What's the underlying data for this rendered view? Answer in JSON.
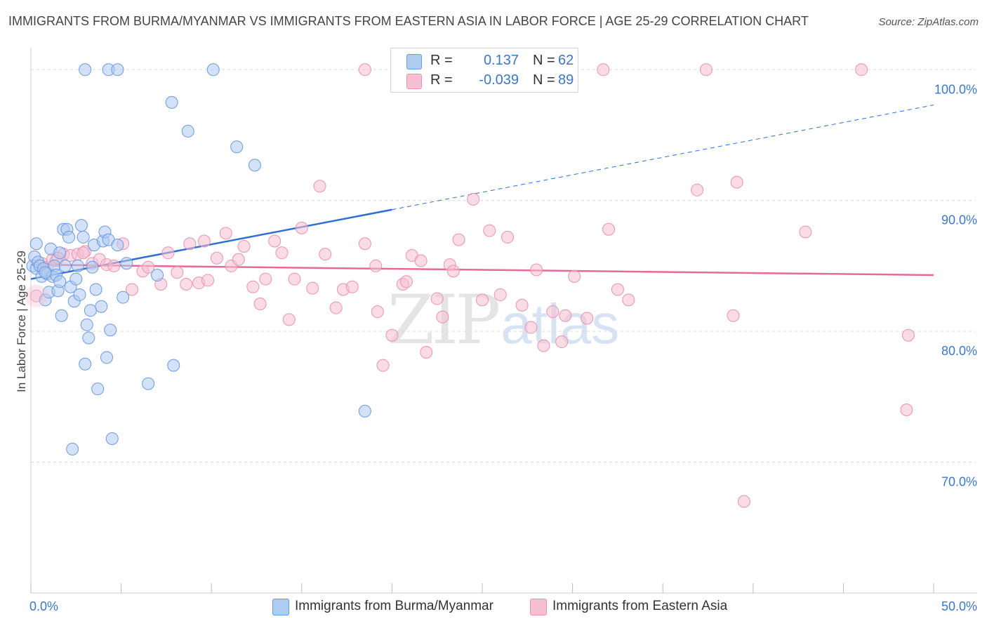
{
  "title": "IMMIGRANTS FROM BURMA/MYANMAR VS IMMIGRANTS FROM EASTERN ASIA IN LABOR FORCE | AGE 25-29 CORRELATION CHART",
  "source": "Source: ZipAtlas.com",
  "watermark": {
    "zip": "ZIP",
    "atlas": "atlas"
  },
  "legend": {
    "rows": [
      {
        "r_label": "R =",
        "r_value": "0.137",
        "n_label": "N =",
        "n_value": "62"
      },
      {
        "r_label": "R =",
        "r_value": "-0.039",
        "n_label": "N =",
        "n_value": "89"
      }
    ]
  },
  "colors": {
    "blue_fill": "#aecbf2",
    "blue_stroke": "#6b9ae0",
    "blue_line": "#2f6fd0",
    "pink_fill": "#f7bfd2",
    "pink_stroke": "#e893b0",
    "pink_line": "#e66a97",
    "tick_label": "#3b78c9",
    "grid": "#d9d9d9"
  },
  "chart_data": {
    "type": "scatter",
    "title": "IMMIGRANTS FROM BURMA/MYANMAR VS IMMIGRANTS FROM EASTERN ASIA IN LABOR FORCE | AGE 25-29 CORRELATION CHART",
    "xlabel": "",
    "ylabel": "In Labor Force | Age 25-29",
    "xlim": [
      0,
      50
    ],
    "ylim": [
      60,
      102
    ],
    "x_tick_labels": [
      "0.0%",
      "50.0%"
    ],
    "y_ticks": [
      70,
      80,
      90,
      100
    ],
    "y_tick_labels": [
      "70.0%",
      "80.0%",
      "90.0%",
      "100.0%"
    ],
    "grid": true,
    "legend_position": "bottom",
    "series": [
      {
        "name": "Immigrants from Burma/Myanmar",
        "r": 0.137,
        "n": 62,
        "trend": {
          "x0": 0,
          "y0": 84.0,
          "x_solid_end": 20,
          "y_solid_end": 89.3,
          "x1": 50,
          "y1": 97.3
        },
        "points": [
          [
            0.1,
            85.0
          ],
          [
            0.2,
            85.7
          ],
          [
            0.3,
            86.7
          ],
          [
            0.3,
            84.8
          ],
          [
            0.4,
            85.3
          ],
          [
            0.5,
            85.0
          ],
          [
            0.6,
            84.2
          ],
          [
            0.7,
            84.8
          ],
          [
            0.8,
            82.4
          ],
          [
            0.9,
            84.4
          ],
          [
            1.0,
            83.0
          ],
          [
            1.1,
            86.3
          ],
          [
            1.2,
            84.2
          ],
          [
            1.3,
            85.0
          ],
          [
            1.4,
            84.3
          ],
          [
            1.5,
            83.1
          ],
          [
            1.6,
            86.0
          ],
          [
            1.7,
            81.2
          ],
          [
            1.8,
            87.8
          ],
          [
            1.9,
            85.0
          ],
          [
            2.0,
            87.8
          ],
          [
            2.1,
            87.2
          ],
          [
            2.2,
            83.4
          ],
          [
            2.3,
            71.0
          ],
          [
            2.4,
            82.3
          ],
          [
            2.5,
            84.0
          ],
          [
            2.6,
            85.0
          ],
          [
            2.7,
            82.8
          ],
          [
            2.8,
            88.1
          ],
          [
            2.9,
            87.2
          ],
          [
            3.0,
            77.5
          ],
          [
            3.1,
            80.5
          ],
          [
            3.2,
            79.5
          ],
          [
            3.3,
            81.6
          ],
          [
            3.4,
            84.9
          ],
          [
            3.5,
            86.6
          ],
          [
            3.6,
            83.2
          ],
          [
            3.7,
            75.6
          ],
          [
            3.9,
            81.9
          ],
          [
            4.0,
            86.9
          ],
          [
            4.1,
            87.6
          ],
          [
            4.2,
            78.0
          ],
          [
            4.3,
            87.0
          ],
          [
            4.4,
            80.1
          ],
          [
            4.5,
            71.8
          ],
          [
            4.8,
            86.6
          ],
          [
            5.1,
            82.6
          ],
          [
            5.3,
            85.2
          ],
          [
            6.5,
            76.0
          ],
          [
            7.0,
            84.3
          ],
          [
            7.8,
            97.5
          ],
          [
            7.9,
            77.4
          ],
          [
            8.7,
            95.3
          ],
          [
            10.1,
            100.0
          ],
          [
            11.4,
            94.1
          ],
          [
            12.4,
            92.7
          ],
          [
            18.5,
            73.9
          ],
          [
            3.0,
            100.0
          ],
          [
            4.3,
            100.0
          ],
          [
            4.8,
            100.0
          ],
          [
            0.8,
            84.5
          ],
          [
            1.6,
            83.8
          ]
        ]
      },
      {
        "name": "Immigrants from Eastern Asia",
        "r": -0.039,
        "n": 89,
        "trend": {
          "x0": 0,
          "y0": 85.1,
          "x1": 50,
          "y1": 84.3
        },
        "points": [
          [
            0.3,
            82.7
          ],
          [
            0.6,
            85.2
          ],
          [
            0.9,
            84.9
          ],
          [
            1.2,
            85.5
          ],
          [
            1.4,
            85.4
          ],
          [
            1.8,
            85.9
          ],
          [
            2.2,
            85.8
          ],
          [
            2.6,
            85.9
          ],
          [
            3.0,
            86.1
          ],
          [
            3.4,
            85.2
          ],
          [
            3.8,
            85.5
          ],
          [
            4.2,
            85.1
          ],
          [
            4.6,
            85.0
          ],
          [
            5.1,
            86.7
          ],
          [
            5.6,
            83.2
          ],
          [
            6.2,
            84.6
          ],
          [
            6.5,
            84.9
          ],
          [
            7.2,
            83.6
          ],
          [
            7.6,
            86.0
          ],
          [
            8.1,
            84.5
          ],
          [
            8.6,
            83.6
          ],
          [
            8.8,
            86.7
          ],
          [
            9.3,
            83.7
          ],
          [
            9.6,
            86.9
          ],
          [
            9.8,
            83.9
          ],
          [
            10.3,
            85.6
          ],
          [
            10.8,
            87.5
          ],
          [
            11.1,
            85.0
          ],
          [
            11.5,
            85.5
          ],
          [
            11.8,
            86.5
          ],
          [
            12.3,
            83.4
          ],
          [
            12.7,
            82.1
          ],
          [
            13.0,
            84.0
          ],
          [
            13.5,
            86.9
          ],
          [
            13.9,
            86.0
          ],
          [
            14.3,
            80.9
          ],
          [
            14.6,
            84.0
          ],
          [
            15.0,
            87.9
          ],
          [
            15.6,
            83.3
          ],
          [
            16.0,
            91.1
          ],
          [
            16.3,
            85.9
          ],
          [
            16.9,
            81.8
          ],
          [
            17.3,
            83.2
          ],
          [
            17.8,
            83.4
          ],
          [
            18.5,
            86.7
          ],
          [
            19.2,
            81.5
          ],
          [
            19.1,
            85.0
          ],
          [
            19.5,
            77.4
          ],
          [
            20.0,
            79.7
          ],
          [
            20.6,
            83.6
          ],
          [
            20.8,
            83.8
          ],
          [
            21.1,
            85.8
          ],
          [
            21.6,
            85.4
          ],
          [
            21.9,
            78.4
          ],
          [
            22.5,
            82.5
          ],
          [
            22.8,
            81.1
          ],
          [
            23.2,
            85.1
          ],
          [
            23.4,
            84.6
          ],
          [
            23.7,
            87.0
          ],
          [
            24.5,
            90.1
          ],
          [
            25.0,
            82.4
          ],
          [
            25.4,
            87.7
          ],
          [
            26.0,
            82.8
          ],
          [
            26.4,
            87.2
          ],
          [
            27.2,
            82.0
          ],
          [
            27.7,
            80.3
          ],
          [
            28.0,
            84.7
          ],
          [
            28.4,
            78.9
          ],
          [
            28.9,
            81.5
          ],
          [
            29.4,
            79.2
          ],
          [
            29.6,
            81.2
          ],
          [
            30.1,
            84.2
          ],
          [
            30.8,
            81.0
          ],
          [
            32.0,
            87.8
          ],
          [
            32.5,
            83.2
          ],
          [
            33.1,
            82.4
          ],
          [
            36.9,
            90.8
          ],
          [
            38.9,
            81.2
          ],
          [
            39.1,
            91.4
          ],
          [
            39.5,
            67.0
          ],
          [
            42.9,
            87.6
          ],
          [
            48.5,
            74.0
          ],
          [
            48.6,
            79.7
          ],
          [
            18.5,
            100.0
          ],
          [
            31.7,
            100.0
          ],
          [
            37.4,
            100.0
          ],
          [
            46.0,
            100.0
          ],
          [
            1.5,
            85.6
          ],
          [
            2.9,
            86.0
          ]
        ]
      }
    ]
  }
}
